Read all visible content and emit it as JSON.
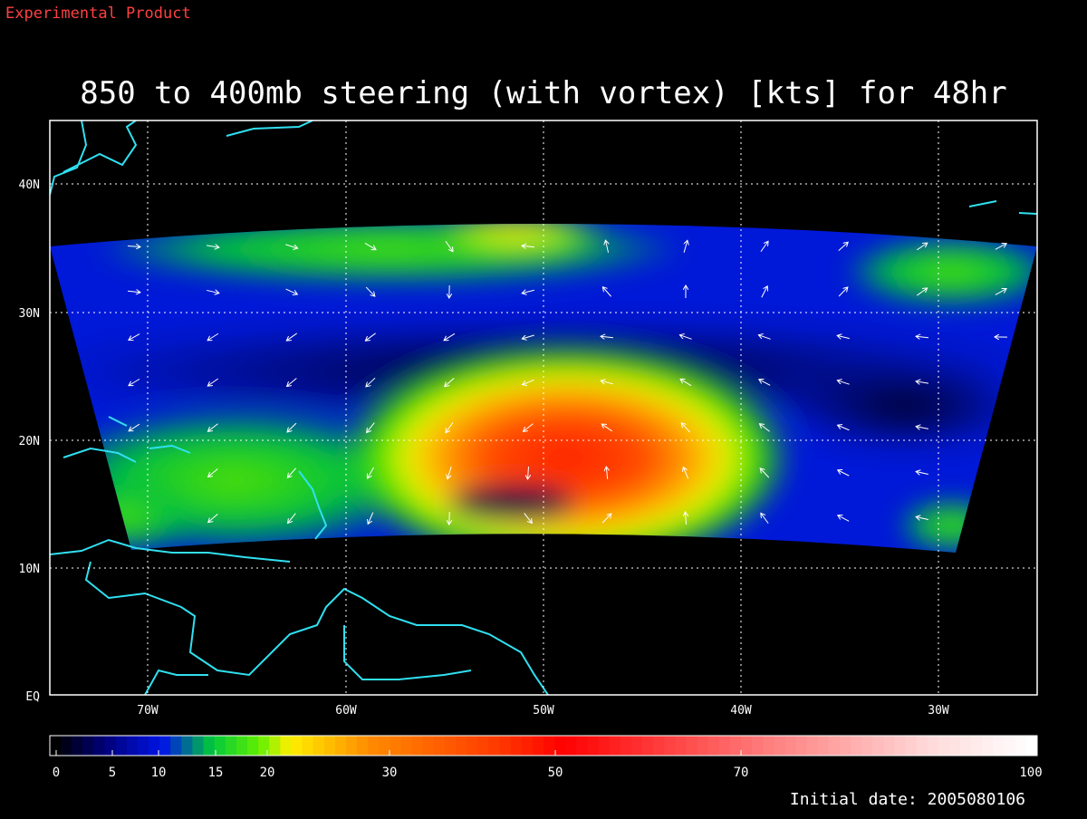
{
  "header": {
    "note": "Experimental Product",
    "title": "850 to 400mb steering (with vortex) [kts] for 48hr"
  },
  "map": {
    "latitude_labels": [
      "40N",
      "30N",
      "20N",
      "10N",
      "EQ"
    ],
    "longitude_labels": [
      "70W",
      "60W",
      "50W",
      "40W",
      "30W"
    ]
  },
  "colorbar": {
    "ticks": [
      0,
      5,
      10,
      15,
      20,
      30,
      50,
      70,
      100
    ]
  },
  "footer": {
    "initial_date": "Initial date: 2005080106"
  }
}
